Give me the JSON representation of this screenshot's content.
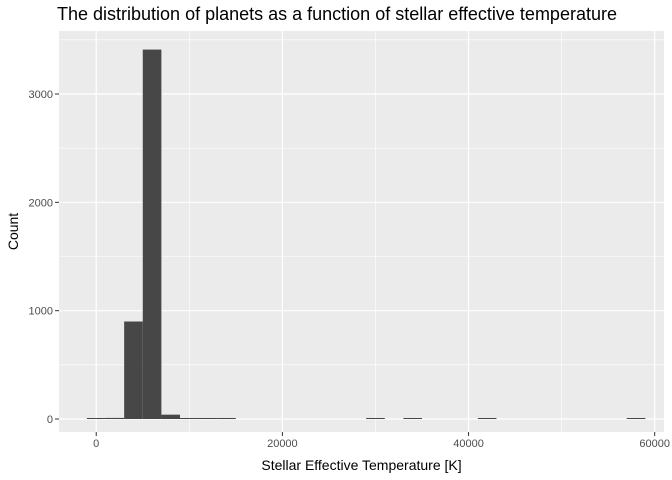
{
  "chart_data": {
    "type": "bar",
    "title": "The distribution of planets as a function of stellar effective temperature",
    "xlabel": "Stellar Effective Temperature [K]",
    "ylabel": "Count",
    "xlim": [
      -4000,
      61000
    ],
    "ylim": [
      0,
      3600
    ],
    "x_ticks": [
      0,
      20000,
      40000,
      60000
    ],
    "x_tick_labels": [
      "0",
      "20000",
      "40000",
      "60000"
    ],
    "y_ticks": [
      0,
      1000,
      2000,
      3000
    ],
    "y_tick_labels": [
      "0",
      "1000",
      "2000",
      "3000"
    ],
    "grid": true,
    "bar_color": "#474747",
    "panel_color": "#ebebeb",
    "bins": [
      {
        "x0": -1000,
        "x1": 1000,
        "count": 3
      },
      {
        "x0": 1000,
        "x1": 3000,
        "count": 10
      },
      {
        "x0": 3000,
        "x1": 5000,
        "count": 900
      },
      {
        "x0": 5000,
        "x1": 7000,
        "count": 3410
      },
      {
        "x0": 7000,
        "x1": 9000,
        "count": 40
      },
      {
        "x0": 9000,
        "x1": 11000,
        "count": 8
      },
      {
        "x0": 11000,
        "x1": 13000,
        "count": 5
      },
      {
        "x0": 13000,
        "x1": 15000,
        "count": 3
      },
      {
        "x0": 29000,
        "x1": 31000,
        "count": 2
      },
      {
        "x0": 33000,
        "x1": 35000,
        "count": 2
      },
      {
        "x0": 41000,
        "x1": 43000,
        "count": 2
      },
      {
        "x0": 57000,
        "x1": 59000,
        "count": 2
      }
    ]
  }
}
